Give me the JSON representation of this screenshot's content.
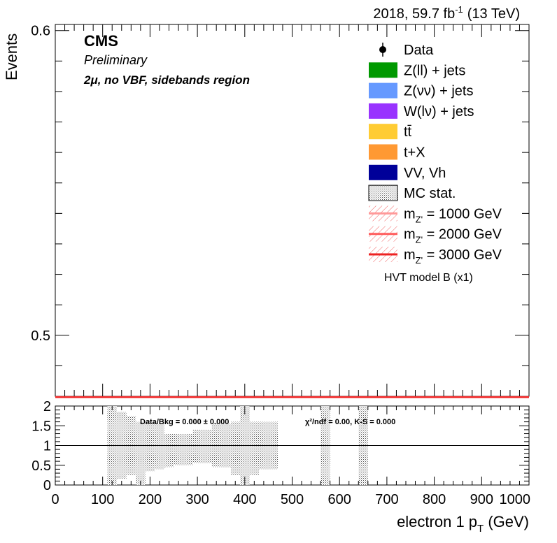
{
  "header": {
    "lumi_label": "2018, 59.7 fb",
    "lumi_exp": "-1",
    "energy_label": "(13 TeV)"
  },
  "labels": {
    "experiment": "CMS",
    "status": "Preliminary",
    "region": "2μ, no VBF, sidebands region",
    "model": "HVT model B (x1)"
  },
  "chart_data": {
    "type": "line",
    "upper_panel": {
      "ylabel": "Events",
      "ylim": [
        0.48,
        0.602
      ],
      "yticks_major": [
        0.5,
        0.6
      ],
      "ytick_labels": [
        "0.5",
        "0.6"
      ],
      "signal_lines": [
        {
          "name": "1000 GeV",
          "value": 0.4797,
          "color": "#ff9999"
        },
        {
          "name": "2000 GeV",
          "value": 0.4797,
          "color": "#ff5c5c"
        },
        {
          "name": "3000 GeV",
          "value": 0.4797,
          "color": "#ee2222"
        }
      ]
    },
    "legend": {
      "placement": "top-right",
      "entries": [
        {
          "kind": "marker",
          "label": "Data",
          "color": "#000000"
        },
        {
          "kind": "fill",
          "label": "Z(ll) + jets",
          "color": "#009900"
        },
        {
          "kind": "fill",
          "label": "Z(νν) + jets",
          "color": "#6699ff"
        },
        {
          "kind": "fill",
          "label": "W(lν) + jets",
          "color": "#9933ff"
        },
        {
          "kind": "fill",
          "label": "tt̄",
          "color": "#ffcc33"
        },
        {
          "kind": "fill",
          "label": "t+X",
          "color": "#ff9933"
        },
        {
          "kind": "fill",
          "label": "VV, Vh",
          "color": "#000099"
        },
        {
          "kind": "hatch",
          "label": "MC stat.",
          "color": "#888888"
        },
        {
          "kind": "signal",
          "label_main": "m",
          "label_sub": "Z'",
          "label_rest": " = 1000 GeV",
          "color": "#ff9999"
        },
        {
          "kind": "signal",
          "label_main": "m",
          "label_sub": "Z'",
          "label_rest": " = 2000 GeV",
          "color": "#ff5c5c"
        },
        {
          "kind": "signal",
          "label_main": "m",
          "label_sub": "Z'",
          "label_rest": " = 3000 GeV",
          "color": "#ee2222"
        }
      ]
    },
    "ratio_panel": {
      "ylim": [
        0,
        2
      ],
      "yticks_major": [
        0,
        0.5,
        1,
        1.5,
        2
      ],
      "ytick_labels": [
        "0",
        "0.5",
        "1",
        "1.5",
        "2"
      ],
      "reference_line": 1,
      "summary_text": "Data/Bkg = 0.000 ± 0.000",
      "stats_text": "χ²/ndf = 0.00,   K-S = 0.000",
      "mc_stat_bands": [
        {
          "x0": 110,
          "x1": 130,
          "lo": 0.0,
          "hi": 2.0
        },
        {
          "x0": 130,
          "x1": 150,
          "lo": 0.15,
          "hi": 1.85
        },
        {
          "x0": 150,
          "x1": 170,
          "lo": 0.25,
          "hi": 1.75
        },
        {
          "x0": 170,
          "x1": 190,
          "lo": 0.0,
          "hi": 1.6
        },
        {
          "x0": 190,
          "x1": 210,
          "lo": 0.35,
          "hi": 1.6
        },
        {
          "x0": 210,
          "x1": 230,
          "lo": 0.4,
          "hi": 1.55
        },
        {
          "x0": 230,
          "x1": 250,
          "lo": 0.45,
          "hi": 1.3
        },
        {
          "x0": 250,
          "x1": 290,
          "lo": 0.5,
          "hi": 1.3
        },
        {
          "x0": 290,
          "x1": 330,
          "lo": 0.55,
          "hi": 1.4
        },
        {
          "x0": 330,
          "x1": 350,
          "lo": 0.45,
          "hi": 1.55
        },
        {
          "x0": 350,
          "x1": 370,
          "lo": 0.45,
          "hi": 1.55
        },
        {
          "x0": 370,
          "x1": 390,
          "lo": 0.25,
          "hi": 1.6
        },
        {
          "x0": 390,
          "x1": 410,
          "lo": 0.0,
          "hi": 2.0
        },
        {
          "x0": 410,
          "x1": 430,
          "lo": 0.25,
          "hi": 1.6
        },
        {
          "x0": 430,
          "x1": 470,
          "lo": 0.4,
          "hi": 1.6
        },
        {
          "x0": 560,
          "x1": 580,
          "lo": 0.0,
          "hi": 2.0
        },
        {
          "x0": 640,
          "x1": 660,
          "lo": 0.0,
          "hi": 2.0
        }
      ]
    },
    "x_axis": {
      "xlabel_main": "electron 1 p",
      "xlabel_sub": "T",
      "xlabel_rest": " (GeV)",
      "xlim": [
        0,
        1000
      ],
      "ticks": [
        0,
        100,
        200,
        300,
        400,
        500,
        600,
        700,
        800,
        900,
        1000
      ],
      "tick_labels": [
        "0",
        "100",
        "200",
        "300",
        "400",
        "500",
        "600",
        "700",
        "800",
        "900",
        "1000"
      ]
    },
    "grid": false
  }
}
